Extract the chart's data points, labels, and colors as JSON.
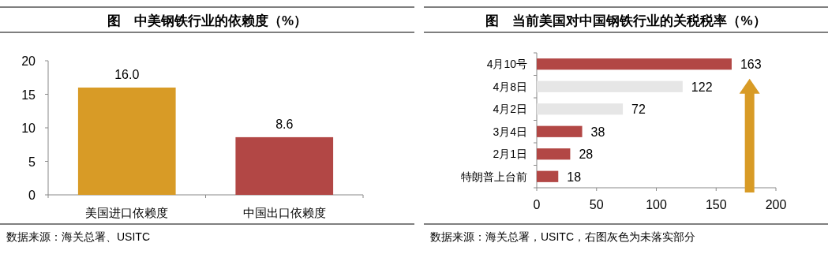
{
  "chart_data": [
    {
      "type": "bar",
      "title": "图　中美钢铁行业的依赖度（%）",
      "categories": [
        "美国进口依赖度",
        "中国出口依赖度"
      ],
      "values": [
        16.0,
        8.6
      ],
      "colors": [
        "#d89b26",
        "#b24745"
      ],
      "value_labels": [
        "16.0",
        "8.6"
      ],
      "ylim": [
        0,
        20
      ],
      "yticks": [
        0,
        5,
        10,
        15,
        20
      ],
      "annotations": [
        "数据来源：海关总署、USITC"
      ]
    },
    {
      "type": "bar",
      "orientation": "horizontal",
      "title": "图　当前美国对中国钢铁行业的关税税率（%）",
      "categories": [
        "4月10号",
        "4月8日",
        "4月2日",
        "3月4日",
        "2月1日",
        "特朗普上台前"
      ],
      "values": [
        163,
        122,
        72,
        38,
        28,
        18
      ],
      "colors": [
        "#b24745",
        "#e6e6e6",
        "#e6e6e6",
        "#b24745",
        "#b24745",
        "#b24745"
      ],
      "data_labels": true,
      "xlim": [
        0,
        200
      ],
      "xticks": [
        0,
        50,
        100,
        150,
        200
      ],
      "annotations": [
        "数据来源：海关总署，USITC，右图灰色为未落实部分"
      ]
    }
  ]
}
